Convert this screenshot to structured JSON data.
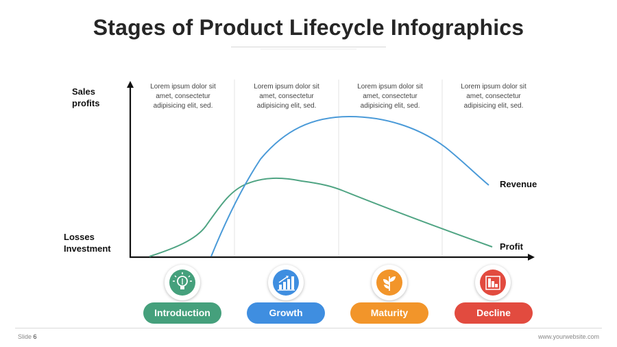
{
  "title": "Stages of Product Lifecycle Infographics",
  "axis": {
    "y_top_label_line1": "Sales",
    "y_top_label_line2": "profits",
    "y_bottom_label_line1": "Losses",
    "y_bottom_label_line2": "Investment"
  },
  "series": {
    "revenue_label": "Revenue",
    "profit_label": "Profit",
    "revenue_color": "#4a9ad8",
    "profit_color": "#4fa483"
  },
  "stages": [
    {
      "name": "Introduction",
      "text_line1": "Lorem ipsum dolor sit",
      "text_line2": "amet, consectetur",
      "text_line3": "adipisicing elit, sed.",
      "color": "#45a07c",
      "icon": "lightbulb-icon"
    },
    {
      "name": "Growth",
      "text_line1": "Lorem ipsum dolor sit",
      "text_line2": "amet, consectetur",
      "text_line3": "adipisicing elit, sed.",
      "color": "#3f8ee0",
      "icon": "bar-chart-up-icon"
    },
    {
      "name": "Maturity",
      "text_line1": "Lorem ipsum dolor sit",
      "text_line2": "amet, consectetur",
      "text_line3": "adipisicing elit, sed.",
      "color": "#f2952a",
      "icon": "leaf-sprout-icon"
    },
    {
      "name": "Decline",
      "text_line1": "Lorem ipsum dolor sit",
      "text_line2": "amet, consectetur",
      "text_line3": "adipisicing elit, sed.",
      "color": "#e24b3f",
      "icon": "bar-chart-down-icon"
    }
  ],
  "footer": {
    "slide_label": "Slide",
    "slide_number": "6",
    "website": "www.yourwebsite.com"
  }
}
